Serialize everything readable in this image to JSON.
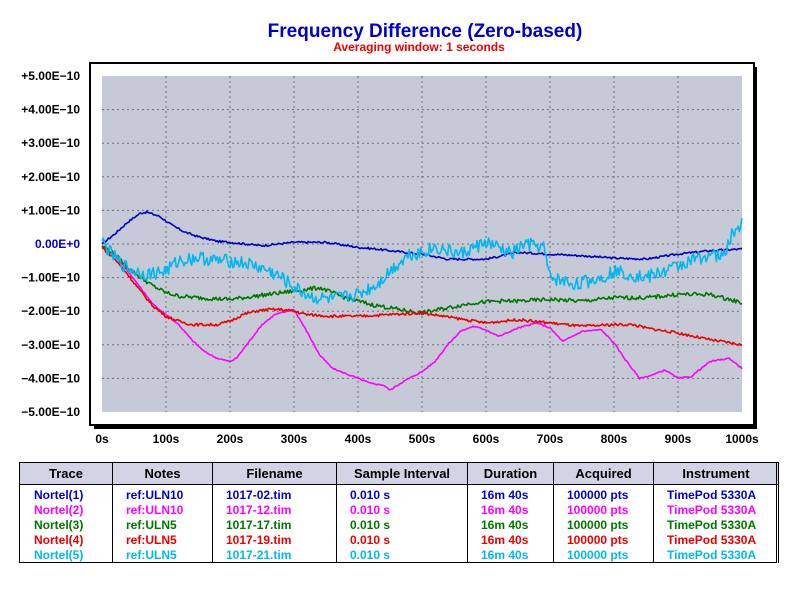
{
  "chart_data": {
    "type": "line",
    "title": "Frequency Difference (Zero-based)",
    "subtitle": "Averaging window: 1 seconds",
    "xlabel": "",
    "ylabel": "",
    "xlim": [
      0,
      1000
    ],
    "ylim": [
      -5e-10,
      5e-10
    ],
    "grid": true,
    "x_ticks": [
      "0s",
      "100s",
      "200s",
      "300s",
      "400s",
      "500s",
      "600s",
      "700s",
      "800s",
      "900s",
      "1000s"
    ],
    "y_ticks": [
      "+5.00E−10",
      "+4.00E−10",
      "+3.00E−10",
      "+2.00E−10",
      "+1.00E−10",
      "0.00E+0",
      "−1.00E−10",
      "−2.00E−10",
      "−3.00E−10",
      "−4.00E−10",
      "−5.00E−10"
    ],
    "series": [
      {
        "name": "Nortel(1)",
        "color": "#0000cc",
        "noise": 0.03,
        "x": [
          0,
          20,
          40,
          60,
          70,
          90,
          110,
          130,
          150,
          180,
          200,
          250,
          300,
          350,
          400,
          430,
          450,
          500,
          540,
          600,
          650,
          700,
          750,
          800,
          850,
          900,
          950,
          1000
        ],
        "y": [
          0,
          0.3,
          0.65,
          0.92,
          0.95,
          0.82,
          0.55,
          0.35,
          0.22,
          0.08,
          0.05,
          -0.05,
          0.05,
          0.05,
          -0.1,
          -0.15,
          -0.2,
          -0.3,
          -0.45,
          -0.45,
          -0.25,
          -0.3,
          -0.35,
          -0.42,
          -0.45,
          -0.3,
          -0.2,
          -0.15
        ]
      },
      {
        "name": "Nortel(2)",
        "color": "#ff00ff",
        "noise": 0.02,
        "x": [
          0,
          20,
          40,
          60,
          80,
          100,
          120,
          140,
          160,
          180,
          200,
          210,
          230,
          250,
          270,
          290,
          300,
          320,
          340,
          360,
          380,
          400,
          420,
          440,
          450,
          470,
          500,
          520,
          540,
          560,
          580,
          600,
          620,
          650,
          680,
          700,
          720,
          750,
          780,
          800,
          820,
          840,
          860,
          880,
          900,
          920,
          950,
          980,
          1000
        ],
        "y": [
          -0.1,
          -0.35,
          -0.8,
          -1.3,
          -1.8,
          -2.1,
          -2.4,
          -2.85,
          -3.2,
          -3.4,
          -3.5,
          -3.4,
          -2.9,
          -2.4,
          -2.1,
          -2.0,
          -1.95,
          -2.6,
          -3.3,
          -3.7,
          -3.85,
          -4.0,
          -4.15,
          -4.2,
          -4.35,
          -4.1,
          -3.8,
          -3.5,
          -3.0,
          -2.6,
          -2.45,
          -2.55,
          -2.75,
          -2.5,
          -2.35,
          -2.5,
          -2.9,
          -2.6,
          -2.55,
          -2.95,
          -3.5,
          -4.0,
          -3.9,
          -3.75,
          -4.0,
          -3.95,
          -3.5,
          -3.4,
          -3.7
        ]
      },
      {
        "name": "Nortel(3)",
        "color": "#007700",
        "noise": 0.06,
        "x": [
          0,
          20,
          40,
          60,
          80,
          100,
          120,
          150,
          200,
          240,
          280,
          320,
          340,
          380,
          420,
          480,
          500,
          540,
          580,
          620,
          650,
          700,
          750,
          800,
          850,
          900,
          950,
          1000
        ],
        "y": [
          -0.05,
          -0.3,
          -0.7,
          -1.0,
          -1.25,
          -1.45,
          -1.55,
          -1.6,
          -1.65,
          -1.55,
          -1.45,
          -1.35,
          -1.3,
          -1.6,
          -1.8,
          -2.0,
          -2.05,
          -1.9,
          -1.75,
          -1.7,
          -1.7,
          -1.65,
          -1.7,
          -1.6,
          -1.6,
          -1.5,
          -1.5,
          -1.75
        ]
      },
      {
        "name": "Nortel(4)",
        "color": "#ee0000",
        "noise": 0.04,
        "x": [
          0,
          20,
          40,
          60,
          80,
          100,
          120,
          140,
          160,
          180,
          200,
          220,
          240,
          260,
          280,
          300,
          320,
          360,
          400,
          450,
          500,
          550,
          600,
          650,
          700,
          750,
          800,
          830,
          850,
          900,
          950,
          1000
        ],
        "y": [
          -0.1,
          -0.45,
          -0.9,
          -1.4,
          -1.85,
          -2.15,
          -2.3,
          -2.4,
          -2.4,
          -2.4,
          -2.3,
          -2.1,
          -2.0,
          -1.95,
          -1.95,
          -2.0,
          -2.1,
          -2.15,
          -2.15,
          -2.1,
          -2.05,
          -2.2,
          -2.35,
          -2.25,
          -2.35,
          -2.45,
          -2.4,
          -2.4,
          -2.5,
          -2.65,
          -2.85,
          -3.0
        ]
      },
      {
        "name": "Nortel(5)",
        "color": "#00b8f0",
        "noise": 0.2,
        "x": [
          0,
          10,
          30,
          50,
          70,
          100,
          120,
          150,
          180,
          200,
          230,
          260,
          280,
          300,
          330,
          360,
          400,
          430,
          450,
          480,
          500,
          520,
          560,
          600,
          640,
          660,
          690,
          700,
          740,
          780,
          800,
          850,
          880,
          920,
          950,
          970,
          985,
          1000
        ],
        "y": [
          0.1,
          -0.2,
          -0.6,
          -0.8,
          -0.9,
          -0.8,
          -0.5,
          -0.4,
          -0.5,
          -0.5,
          -0.6,
          -0.8,
          -1.0,
          -1.3,
          -1.6,
          -1.65,
          -1.5,
          -1.2,
          -0.8,
          -0.3,
          -0.25,
          -0.1,
          -0.3,
          0.05,
          -0.3,
          0.0,
          -0.1,
          -1.0,
          -1.2,
          -1.0,
          -0.8,
          -1.0,
          -0.8,
          -0.5,
          -0.3,
          -0.4,
          0.3,
          0.6
        ]
      }
    ]
  },
  "legend": {
    "headers": [
      "Trace",
      "Notes",
      "Filename",
      "Sample Interval",
      "Duration",
      "Acquired",
      "Instrument"
    ],
    "rows": [
      {
        "color": "#0000cc",
        "trace": "Nortel(1)",
        "notes": "ref:ULN10",
        "filename": "1017-02.tim",
        "interval": "0.010 s",
        "duration": "16m 40s",
        "acquired": "100000 pts",
        "instrument": "TimePod 5330A"
      },
      {
        "color": "#ff00ff",
        "trace": "Nortel(2)",
        "notes": "ref:ULN10",
        "filename": "1017-12.tim",
        "interval": "0.010 s",
        "duration": "16m 40s",
        "acquired": "100000 pts",
        "instrument": "TimePod 5330A"
      },
      {
        "color": "#007700",
        "trace": "Nortel(3)",
        "notes": "ref:ULN5",
        "filename": "1017-17.tim",
        "interval": "0.010 s",
        "duration": "16m 40s",
        "acquired": "100000 pts",
        "instrument": "TimePod 5330A"
      },
      {
        "color": "#ee0000",
        "trace": "Nortel(4)",
        "notes": "ref:ULN5",
        "filename": "1017-19.tim",
        "interval": "0.010 s",
        "duration": "16m 40s",
        "acquired": "100000 pts",
        "instrument": "TimePod 5330A"
      },
      {
        "color": "#00b8f0",
        "trace": "Nortel(5)",
        "notes": "ref:ULN5",
        "filename": "1017-21.tim",
        "interval": "0.010 s",
        "duration": "16m 40s",
        "acquired": "100000 pts",
        "instrument": "TimePod 5330A"
      }
    ]
  }
}
